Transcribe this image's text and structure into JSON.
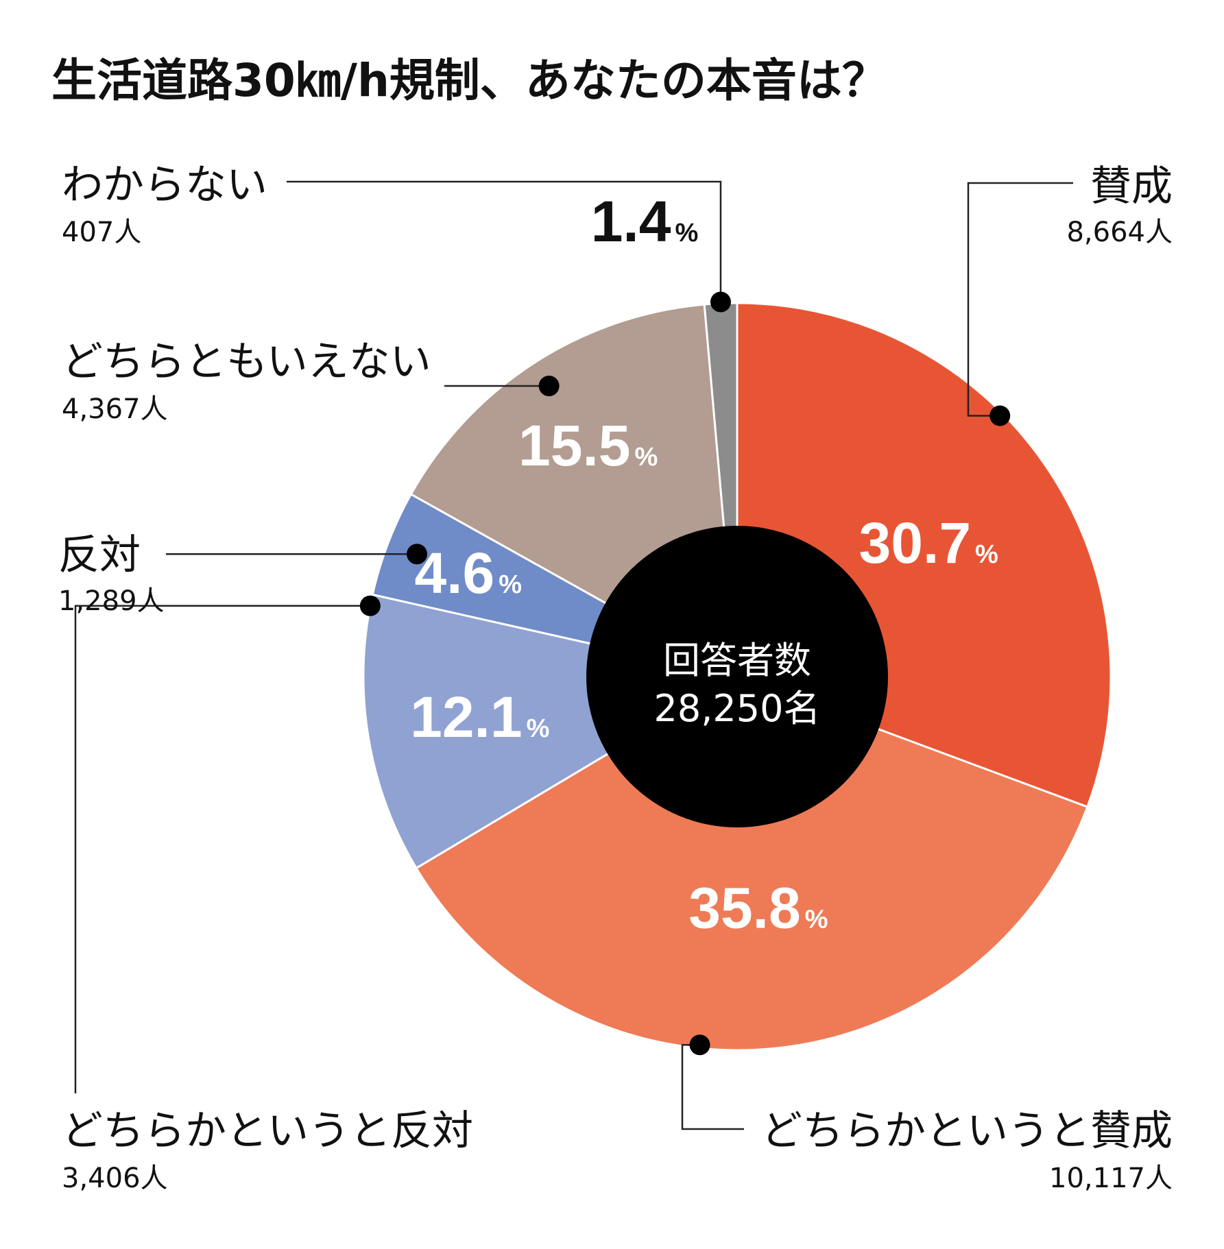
{
  "chart_data": {
    "type": "pie",
    "title": "生活道路30㎞/h規制、あなたの本音は？",
    "center_label": "回答者数",
    "center_value": "28,250名",
    "percent_symbol": "%",
    "slices": [
      {
        "label": "賛成",
        "count": "8,664人",
        "value": 30.7,
        "value_label": "30.7",
        "color": "#e85535"
      },
      {
        "label": "どちらかというと賛成",
        "count": "10,117人",
        "value": 35.8,
        "value_label": "35.8",
        "color": "#ee7b56"
      },
      {
        "label": "どちらかというと反対",
        "count": "3,406人",
        "value": 12.1,
        "value_label": "12.1",
        "color": "#8fa2d2"
      },
      {
        "label": "反対",
        "count": "1,289人",
        "value": 4.6,
        "value_label": "4.6",
        "color": "#6f8bc8"
      },
      {
        "label": "どちらともいえない",
        "count": "4,367人",
        "value": 15.5,
        "value_label": "15.5",
        "color": "#b39c91"
      },
      {
        "label": "わからない",
        "count": "407人",
        "value": 1.4,
        "value_label": "1.4",
        "color": "#8c8c8c"
      }
    ]
  }
}
